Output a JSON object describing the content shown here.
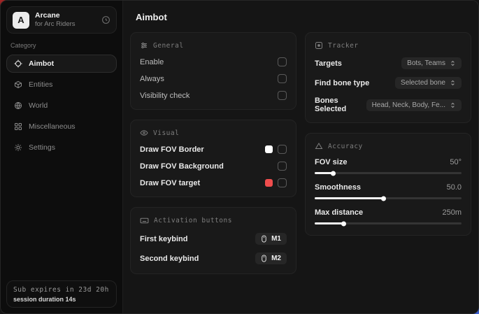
{
  "app": {
    "logo_letter": "A",
    "name": "Arcane",
    "subtitle": "for Arc Riders"
  },
  "sidebar": {
    "category_label": "Category",
    "items": [
      {
        "label": "Aimbot",
        "icon": "crosshair-icon"
      },
      {
        "label": "Entities",
        "icon": "cube-icon"
      },
      {
        "label": "World",
        "icon": "globe-icon"
      },
      {
        "label": "Miscellaneous",
        "icon": "grid-icon"
      },
      {
        "label": "Settings",
        "icon": "gear-icon"
      }
    ],
    "footer": {
      "line1": "Sub expires in 23d 20h",
      "line2": "session duration 14s"
    }
  },
  "main": {
    "title": "Aimbot",
    "general": {
      "title": "General",
      "rows": [
        {
          "label": "Enable",
          "checked": false
        },
        {
          "label": "Always",
          "checked": false
        },
        {
          "label": "Visibility check",
          "checked": false
        }
      ]
    },
    "visual": {
      "title": "Visual",
      "rows": [
        {
          "label": "Draw FOV Border",
          "swatch": "#ffffff",
          "checked": false
        },
        {
          "label": "Draw FOV Background",
          "checked": false
        },
        {
          "label": "Draw FOV target",
          "swatch": "#ef4d4d",
          "checked": false
        }
      ]
    },
    "activation": {
      "title": "Activation buttons",
      "rows": [
        {
          "label": "First keybind",
          "key": "M1"
        },
        {
          "label": "Second keybind",
          "key": "M2"
        }
      ]
    },
    "tracker": {
      "title": "Tracker",
      "rows": [
        {
          "label": "Targets",
          "value": "Bots, Teams"
        },
        {
          "label": "Find bone type",
          "value": "Selected bone"
        },
        {
          "label": "Bones Selected",
          "value": "Head, Neck, Body, Fe..."
        }
      ]
    },
    "accuracy": {
      "title": "Accuracy",
      "rows": [
        {
          "label": "FOV size",
          "value": "50°",
          "fill_pct": 13
        },
        {
          "label": "Smoothness",
          "value": "50.0",
          "fill_pct": 47
        },
        {
          "label": "Max distance",
          "value": "250m",
          "fill_pct": 20
        }
      ]
    }
  },
  "colors": {
    "accent_red": "#ef4d4d",
    "swatch_white": "#ffffff"
  }
}
